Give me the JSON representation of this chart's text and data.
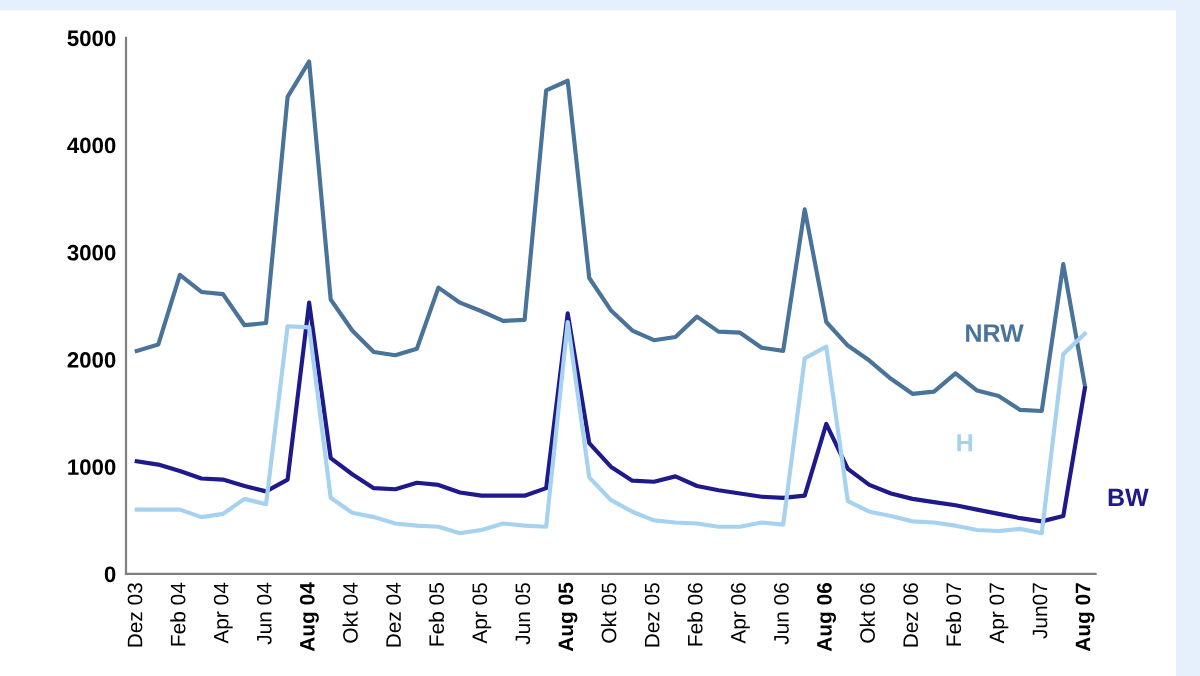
{
  "chart_data": {
    "type": "line",
    "categories": [
      "Dez 03",
      null,
      "Feb 04",
      null,
      "Apr 04",
      null,
      "Jun 04",
      null,
      "Aug 04",
      null,
      "Okt 04",
      null,
      "Dez 04",
      null,
      "Feb 05",
      null,
      "Apr 05",
      null,
      "Jun 05",
      null,
      "Aug 05",
      null,
      "Okt 05",
      null,
      "Dez 05",
      null,
      "Feb 06",
      null,
      "Apr 06",
      null,
      "Jun 06",
      null,
      "Aug 06",
      null,
      "Okt 06",
      null,
      "Dez 06",
      null,
      "Feb 07",
      null,
      "Apr 07",
      null,
      "Jun07",
      null,
      "Aug 07"
    ],
    "series": [
      {
        "name": "NRW",
        "color": "#4a7399",
        "values": [
          2080,
          2140,
          2790,
          2630,
          2610,
          2320,
          2340,
          4450,
          4780,
          2560,
          2270,
          2070,
          2040,
          2100,
          2670,
          2530,
          2450,
          2360,
          2370,
          4510,
          4600,
          2760,
          2460,
          2270,
          2180,
          2210,
          2400,
          2260,
          2250,
          2110,
          2080,
          3400,
          2350,
          2130,
          1990,
          1820,
          1680,
          1700,
          1870,
          1710,
          1660,
          1530,
          1520,
          2890,
          1760
        ]
      },
      {
        "name": "BW",
        "color": "#1f1a8c",
        "values": [
          1050,
          1020,
          960,
          890,
          880,
          820,
          770,
          880,
          2530,
          1080,
          930,
          800,
          790,
          850,
          830,
          760,
          730,
          730,
          730,
          800,
          2430,
          1220,
          1000,
          870,
          860,
          910,
          820,
          780,
          750,
          720,
          710,
          730,
          1400,
          980,
          830,
          750,
          700,
          670,
          640,
          600,
          560,
          520,
          490,
          540,
          1730
        ]
      },
      {
        "name": "H",
        "color": "#a6d2f0",
        "values": [
          600,
          600,
          600,
          530,
          560,
          700,
          650,
          2310,
          2300,
          710,
          570,
          530,
          470,
          450,
          440,
          380,
          410,
          470,
          450,
          440,
          2350,
          900,
          690,
          580,
          500,
          480,
          470,
          440,
          440,
          480,
          460,
          2010,
          2120,
          680,
          580,
          540,
          490,
          480,
          450,
          410,
          400,
          420,
          380,
          2050,
          2240
        ]
      }
    ],
    "ylim": [
      0,
      5000
    ],
    "yticks": [
      0,
      1000,
      2000,
      3000,
      4000,
      5000
    ],
    "grid": false,
    "legend": false,
    "marker": "none",
    "line_style": "solid"
  }
}
